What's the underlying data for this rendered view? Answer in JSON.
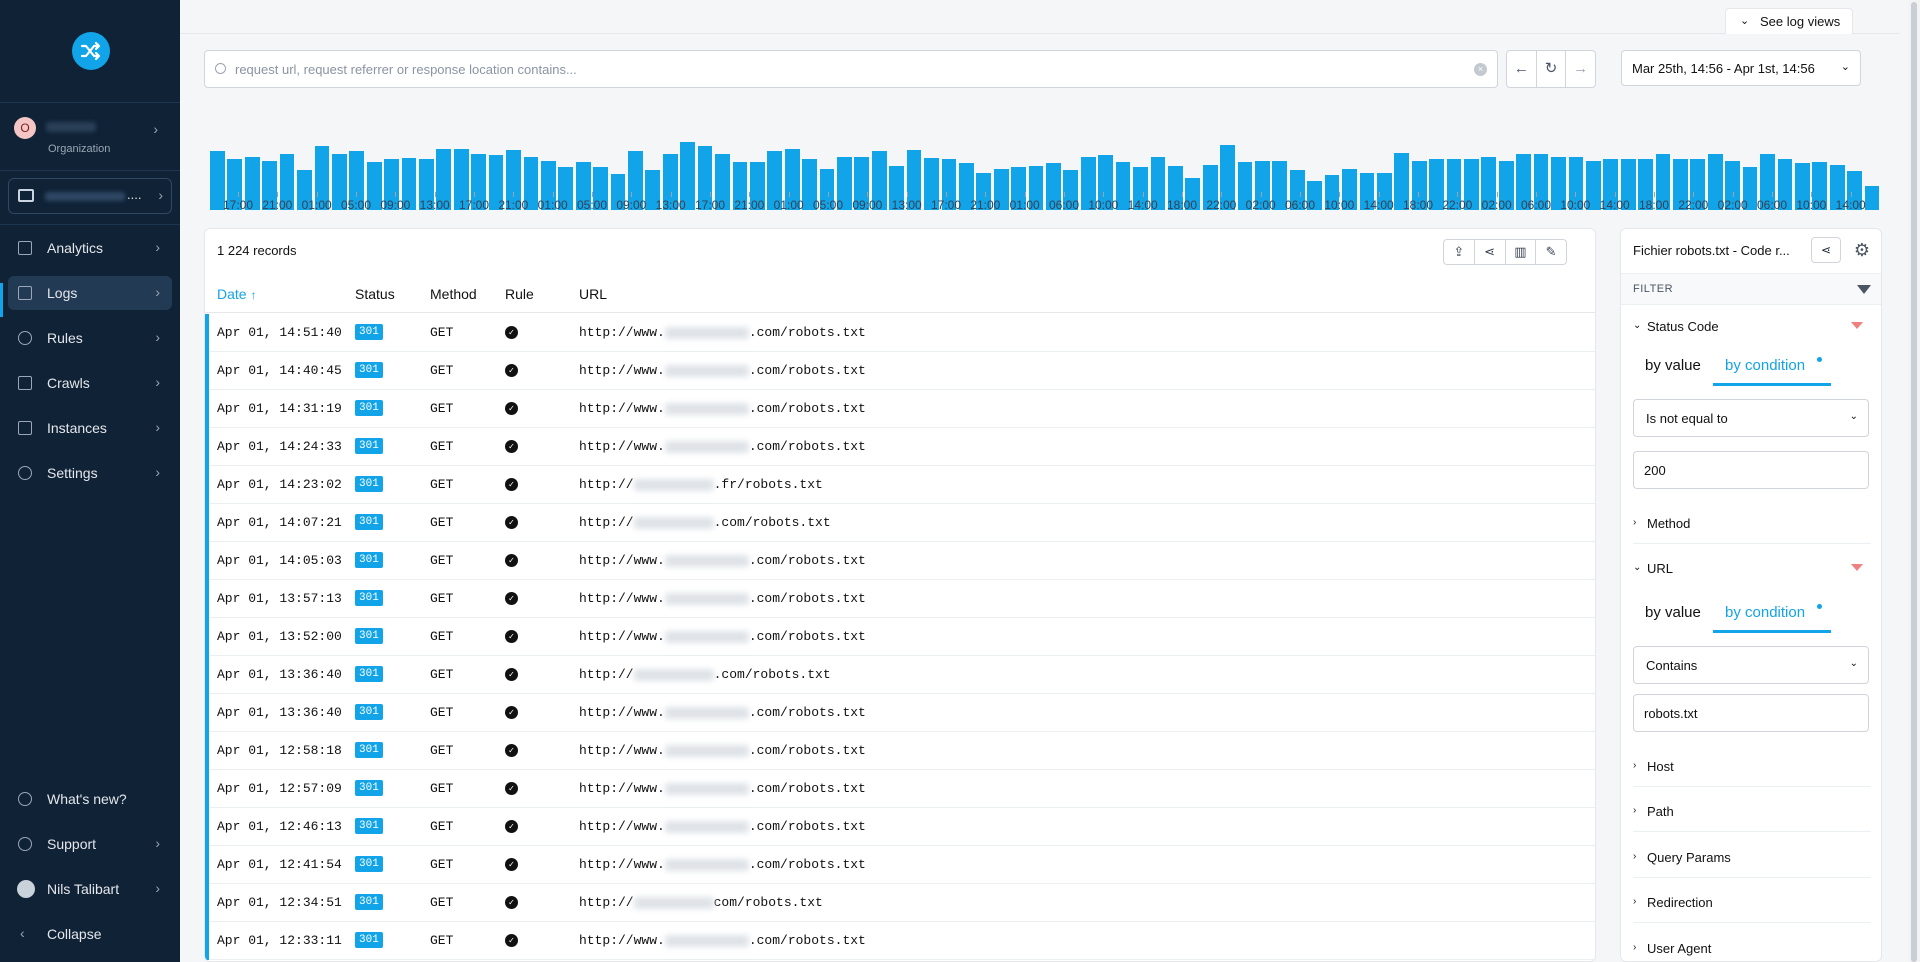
{
  "sidebar": {
    "org_initial": "O",
    "org_label": "Organization",
    "project_suffix": "....",
    "items": [
      {
        "label": "Analytics",
        "icon": "chart-bar-icon"
      },
      {
        "label": "Logs",
        "icon": "file-text-icon"
      },
      {
        "label": "Rules",
        "icon": "route-icon"
      },
      {
        "label": "Crawls",
        "icon": "robot-icon"
      },
      {
        "label": "Instances",
        "icon": "table-icon"
      },
      {
        "label": "Settings",
        "icon": "gear-icon"
      }
    ],
    "bottom": [
      {
        "label": "What's new?",
        "icon": "sparkles-icon"
      },
      {
        "label": "Support",
        "icon": "help-circle-icon"
      },
      {
        "label": "Nils Talibart",
        "icon": "user-avatar"
      },
      {
        "label": "Collapse",
        "icon": "chevron-left-icon"
      }
    ]
  },
  "header": {
    "log_views": "See log views",
    "search_placeholder": "request url, request referrer or response location contains...",
    "date_range": "Mar 25th, 14:56 - Apr 1st, 14:56"
  },
  "histogram": {
    "values": [
      44,
      38,
      40,
      37,
      42,
      30,
      48,
      42,
      44,
      36,
      38,
      39,
      38,
      46,
      46,
      42,
      41,
      45,
      40,
      37,
      32,
      36,
      32,
      27,
      44,
      30,
      42,
      51,
      48,
      42,
      36,
      36,
      44,
      46,
      38,
      31,
      40,
      40,
      44,
      33,
      45,
      39,
      38,
      35,
      28,
      31,
      32,
      33,
      35,
      30,
      40,
      41,
      36,
      32,
      40,
      33,
      24,
      34,
      49,
      36,
      37,
      37,
      30,
      22,
      26,
      31,
      28,
      28,
      43,
      37,
      38,
      38,
      38,
      40,
      37,
      42,
      42,
      40,
      40,
      37,
      38,
      38,
      38,
      42,
      38,
      38,
      42,
      37,
      32,
      42,
      38,
      35,
      36,
      34,
      29,
      18
    ],
    "tick_labels": [
      "17:00",
      "21:00",
      "01:00",
      "05:00",
      "09:00",
      "13:00",
      "17:00",
      "21:00",
      "01:00",
      "05:00",
      "09:00",
      "13:00",
      "17:00",
      "21:00",
      "01:00",
      "05:00",
      "09:00",
      "13:00",
      "17:00",
      "21:00",
      "01:00",
      "06:00",
      "10:00",
      "14:00",
      "18:00",
      "22:00",
      "02:00",
      "06:00",
      "10:00",
      "14:00",
      "18:00",
      "22:00",
      "02:00",
      "06:00",
      "10:00",
      "14:00",
      "18:00",
      "22:00",
      "02:00",
      "06:00",
      "10:00",
      "14:00"
    ]
  },
  "table": {
    "record_count": "1 224 records",
    "columns": {
      "date": "Date",
      "status": "Status",
      "method": "Method",
      "rule": "Rule",
      "url": "URL"
    },
    "sort_indicator": "↑",
    "rows": [
      {
        "date": "Apr 01, 14:51:40",
        "status": "301",
        "method": "GET",
        "url_prefix": "http://www.",
        "url_suffix": ".com/robots.txt"
      },
      {
        "date": "Apr 01, 14:40:45",
        "status": "301",
        "method": "GET",
        "url_prefix": "http://www.",
        "url_suffix": ".com/robots.txt"
      },
      {
        "date": "Apr 01, 14:31:19",
        "status": "301",
        "method": "GET",
        "url_prefix": "http://www.",
        "url_suffix": ".com/robots.txt"
      },
      {
        "date": "Apr 01, 14:24:33",
        "status": "301",
        "method": "GET",
        "url_prefix": "http://www.",
        "url_suffix": ".com/robots.txt"
      },
      {
        "date": "Apr 01, 14:23:02",
        "status": "301",
        "method": "GET",
        "url_prefix": "http://",
        "url_suffix": ".fr/robots.txt"
      },
      {
        "date": "Apr 01, 14:07:21",
        "status": "301",
        "method": "GET",
        "url_prefix": "http://",
        "url_suffix": ".com/robots.txt"
      },
      {
        "date": "Apr 01, 14:05:03",
        "status": "301",
        "method": "GET",
        "url_prefix": "http://www.",
        "url_suffix": ".com/robots.txt"
      },
      {
        "date": "Apr 01, 13:57:13",
        "status": "301",
        "method": "GET",
        "url_prefix": "http://www.",
        "url_suffix": ".com/robots.txt"
      },
      {
        "date": "Apr 01, 13:52:00",
        "status": "301",
        "method": "GET",
        "url_prefix": "http://www.",
        "url_suffix": ".com/robots.txt"
      },
      {
        "date": "Apr 01, 13:36:40",
        "status": "301",
        "method": "GET",
        "url_prefix": "http://",
        "url_suffix": ".com/robots.txt"
      },
      {
        "date": "Apr 01, 13:36:40",
        "status": "301",
        "method": "GET",
        "url_prefix": "http://www.",
        "url_suffix": ".com/robots.txt"
      },
      {
        "date": "Apr 01, 12:58:18",
        "status": "301",
        "method": "GET",
        "url_prefix": "http://www.",
        "url_suffix": ".com/robots.txt"
      },
      {
        "date": "Apr 01, 12:57:09",
        "status": "301",
        "method": "GET",
        "url_prefix": "http://www.",
        "url_suffix": ".com/robots.txt"
      },
      {
        "date": "Apr 01, 12:46:13",
        "status": "301",
        "method": "GET",
        "url_prefix": "http://www.",
        "url_suffix": ".com/robots.txt"
      },
      {
        "date": "Apr 01, 12:41:54",
        "status": "301",
        "method": "GET",
        "url_prefix": "http://www.",
        "url_suffix": ".com/robots.txt"
      },
      {
        "date": "Apr 01, 12:34:51",
        "status": "301",
        "method": "GET",
        "url_prefix": "http://",
        "url_suffix": "com/robots.txt"
      },
      {
        "date": "Apr 01, 12:33:11",
        "status": "301",
        "method": "GET",
        "url_prefix": "http://www.",
        "url_suffix": ".com/robots.txt"
      }
    ]
  },
  "filter_panel": {
    "title": "Fichier robots.txt - Code r...",
    "filter_label": "FILTER",
    "status_code": {
      "name": "Status Code",
      "tab_value": "by value",
      "tab_condition": "by condition",
      "condition": "Is not equal to",
      "value": "200"
    },
    "method": "Method",
    "url": {
      "name": "URL",
      "tab_value": "by value",
      "tab_condition": "by condition",
      "condition": "Contains",
      "value": "robots.txt"
    },
    "host": "Host",
    "path": "Path",
    "query_params": "Query Params",
    "redirection": "Redirection",
    "user_agent": "User Agent"
  },
  "colors": {
    "accent": "#12a4e8",
    "sidebar": "#0f2236",
    "filter_active": "#f08080"
  }
}
